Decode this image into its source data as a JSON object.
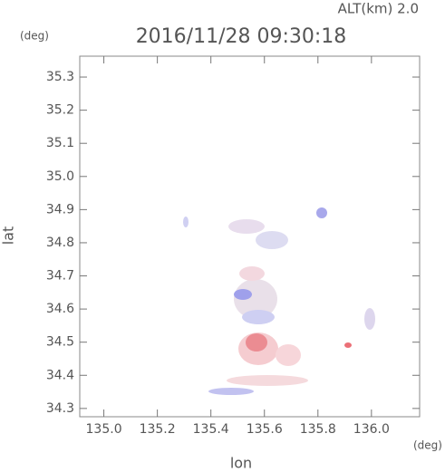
{
  "chart_data": {
    "type": "map",
    "title": "2016/11/28 09:30:18",
    "annotation": "ALT(km) 2.0",
    "y_unit": "(deg)",
    "x_unit": "(deg)",
    "xlabel": "lon",
    "ylabel": "lat",
    "xlim": [
      134.91,
      136.18
    ],
    "ylim": [
      34.275,
      35.363
    ],
    "xticks": [
      {
        "value": 135.0,
        "label": "135.0"
      },
      135.2,
      135.4,
      135.6,
      135.8,
      {
        "value": 136.0,
        "label": "136.0"
      }
    ],
    "yticks": [
      34.3,
      34.4,
      34.5,
      34.6,
      34.7,
      34.8,
      34.9,
      {
        "value": 35.0,
        "label": "35.0"
      },
      35.1,
      35.2,
      35.3
    ]
  }
}
